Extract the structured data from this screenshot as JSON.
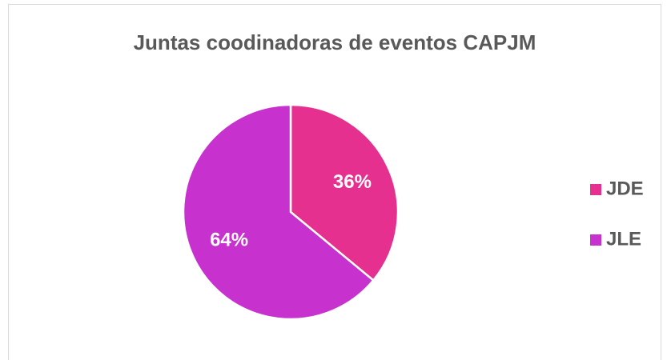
{
  "chart_data": {
    "type": "pie",
    "title": "Juntas coodinadoras de eventos CAPJM",
    "categories": [
      "JDE",
      "JLE"
    ],
    "values": [
      36,
      64
    ],
    "value_labels": [
      "36%",
      "64%"
    ],
    "colors": [
      "#e6308f",
      "#c732cf"
    ],
    "legend": "right"
  }
}
